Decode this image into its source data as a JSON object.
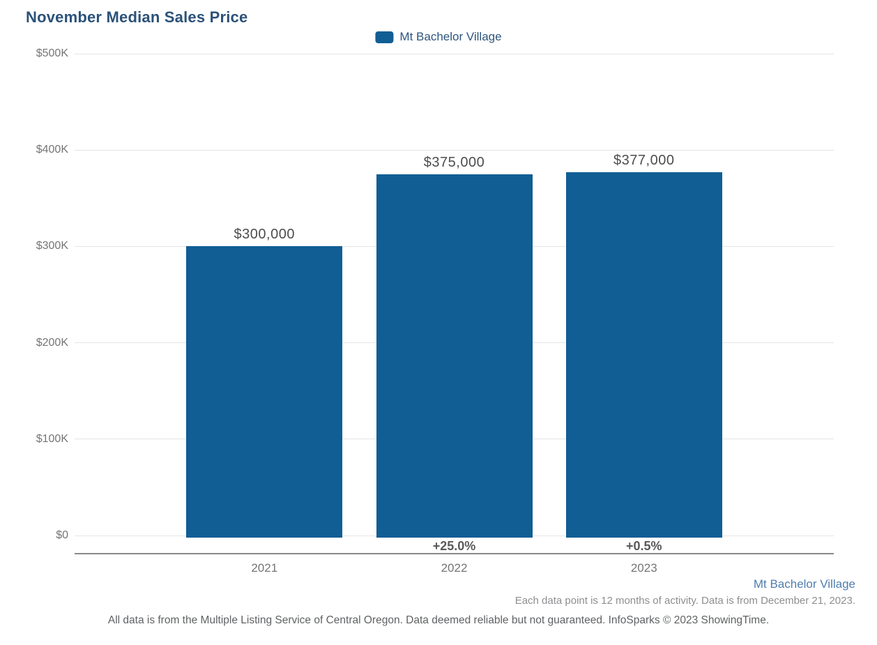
{
  "title": "November Median Sales Price",
  "legend": {
    "label": "Mt Bachelor Village",
    "swatch_color": "#105E94"
  },
  "chart_data": {
    "type": "bar",
    "title": "November Median Sales Price",
    "categories": [
      "2021",
      "2022",
      "2023"
    ],
    "series": [
      {
        "name": "Mt Bachelor Village",
        "values": [
          300000,
          375000,
          377000
        ]
      }
    ],
    "value_labels": [
      "$300,000",
      "$375,000",
      "$377,000"
    ],
    "pct_change_labels": [
      "",
      "+25.0%",
      "+0.5%"
    ],
    "xlabel": "",
    "ylabel": "",
    "ylim": [
      0,
      500000
    ],
    "ytick_labels": [
      "$0",
      "$100K",
      "$200K",
      "$300K",
      "$400K",
      "$500K"
    ],
    "grid": true,
    "legend_position": "top-center",
    "bar_color": "#105E94"
  },
  "footer": {
    "series_name": "Mt Bachelor Village",
    "data_note": "Each data point is 12 months of activity. Data is from December 21, 2023.",
    "disclaimer": "All data is from the Multiple Listing Service of Central Oregon. Data deemed reliable but not guaranteed. InfoSparks © 2023 ShowingTime."
  }
}
